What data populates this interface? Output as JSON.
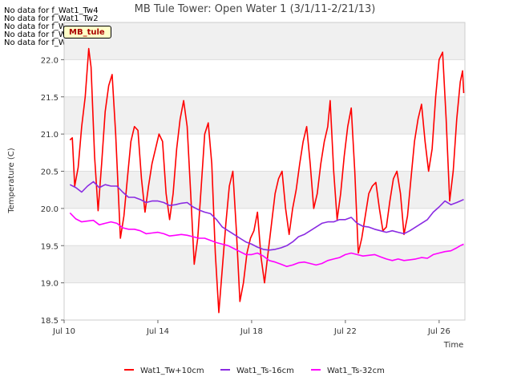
{
  "no_data_notes": [
    "No data for f_Wat1_Tw4",
    "No data for f_Wat1_Tw2",
    "No data for f_Wat1_Ts2",
    "No data for f_Wat1_Ts4",
    "No data for f_Wat1_Ts8"
  ],
  "tag_label": "MB_tule",
  "chart_data": {
    "type": "line",
    "title": "MB Tule Tower: Open Water 1 (3/1/11-2/21/13)",
    "xlabel": "Time",
    "ylabel": "Temperature (C)",
    "xlim": [
      0,
      17.1
    ],
    "ylim": [
      18.5,
      22.5
    ],
    "x_ticks": [
      {
        "value": 0,
        "label": "Jul 10"
      },
      {
        "value": 4,
        "label": "Jul 14"
      },
      {
        "value": 8,
        "label": "Jul 18"
      },
      {
        "value": 12,
        "label": "Jul 22"
      },
      {
        "value": 16,
        "label": "Jul 26"
      }
    ],
    "y_ticks": [
      18.5,
      19.0,
      19.5,
      20.0,
      20.5,
      21.0,
      21.5,
      22.0
    ],
    "grid": "horizontal-bands",
    "legend_position": "bottom",
    "series": [
      {
        "name": "Wat1_Tw+10cm",
        "color": "#ff0000",
        "points": [
          [
            0.25,
            20.92
          ],
          [
            0.35,
            20.95
          ],
          [
            0.45,
            20.3
          ],
          [
            0.6,
            20.55
          ],
          [
            0.75,
            21.1
          ],
          [
            0.9,
            21.5
          ],
          [
            1.05,
            22.15
          ],
          [
            1.15,
            21.9
          ],
          [
            1.3,
            20.7
          ],
          [
            1.45,
            19.97
          ],
          [
            1.6,
            20.6
          ],
          [
            1.75,
            21.3
          ],
          [
            1.9,
            21.65
          ],
          [
            2.05,
            21.8
          ],
          [
            2.2,
            21.0
          ],
          [
            2.4,
            19.6
          ],
          [
            2.55,
            19.9
          ],
          [
            2.7,
            20.4
          ],
          [
            2.85,
            20.9
          ],
          [
            3.0,
            21.1
          ],
          [
            3.15,
            21.05
          ],
          [
            3.3,
            20.4
          ],
          [
            3.45,
            19.95
          ],
          [
            3.6,
            20.3
          ],
          [
            3.75,
            20.6
          ],
          [
            3.9,
            20.8
          ],
          [
            4.05,
            21.0
          ],
          [
            4.2,
            20.9
          ],
          [
            4.35,
            20.2
          ],
          [
            4.5,
            19.85
          ],
          [
            4.65,
            20.2
          ],
          [
            4.8,
            20.8
          ],
          [
            4.95,
            21.2
          ],
          [
            5.1,
            21.45
          ],
          [
            5.25,
            21.1
          ],
          [
            5.4,
            20.2
          ],
          [
            5.55,
            19.25
          ],
          [
            5.7,
            19.6
          ],
          [
            5.85,
            20.3
          ],
          [
            6.0,
            21.0
          ],
          [
            6.15,
            21.15
          ],
          [
            6.3,
            20.6
          ],
          [
            6.45,
            19.4
          ],
          [
            6.6,
            18.6
          ],
          [
            6.75,
            19.2
          ],
          [
            6.9,
            19.8
          ],
          [
            7.05,
            20.3
          ],
          [
            7.2,
            20.5
          ],
          [
            7.35,
            19.7
          ],
          [
            7.5,
            18.75
          ],
          [
            7.65,
            19.0
          ],
          [
            7.8,
            19.4
          ],
          [
            7.95,
            19.6
          ],
          [
            8.1,
            19.7
          ],
          [
            8.25,
            19.95
          ],
          [
            8.4,
            19.35
          ],
          [
            8.55,
            19.0
          ],
          [
            8.7,
            19.4
          ],
          [
            8.85,
            19.8
          ],
          [
            9.0,
            20.2
          ],
          [
            9.15,
            20.4
          ],
          [
            9.3,
            20.5
          ],
          [
            9.45,
            20.0
          ],
          [
            9.6,
            19.65
          ],
          [
            9.75,
            20.0
          ],
          [
            9.9,
            20.25
          ],
          [
            10.05,
            20.6
          ],
          [
            10.2,
            20.9
          ],
          [
            10.35,
            21.1
          ],
          [
            10.5,
            20.6
          ],
          [
            10.65,
            20.0
          ],
          [
            10.8,
            20.2
          ],
          [
            10.95,
            20.6
          ],
          [
            11.1,
            20.9
          ],
          [
            11.25,
            21.1
          ],
          [
            11.35,
            21.45
          ],
          [
            11.5,
            20.5
          ],
          [
            11.65,
            19.85
          ],
          [
            11.8,
            20.2
          ],
          [
            11.95,
            20.7
          ],
          [
            12.1,
            21.1
          ],
          [
            12.25,
            21.35
          ],
          [
            12.4,
            20.5
          ],
          [
            12.55,
            19.4
          ],
          [
            12.7,
            19.6
          ],
          [
            12.85,
            19.9
          ],
          [
            13.0,
            20.2
          ],
          [
            13.15,
            20.3
          ],
          [
            13.3,
            20.35
          ],
          [
            13.45,
            20.0
          ],
          [
            13.6,
            19.7
          ],
          [
            13.75,
            19.75
          ],
          [
            13.9,
            20.1
          ],
          [
            14.05,
            20.4
          ],
          [
            14.2,
            20.5
          ],
          [
            14.35,
            20.2
          ],
          [
            14.5,
            19.65
          ],
          [
            14.65,
            19.9
          ],
          [
            14.8,
            20.4
          ],
          [
            14.95,
            20.9
          ],
          [
            15.1,
            21.2
          ],
          [
            15.25,
            21.4
          ],
          [
            15.4,
            20.9
          ],
          [
            15.55,
            20.5
          ],
          [
            15.7,
            20.8
          ],
          [
            15.85,
            21.5
          ],
          [
            16.0,
            22.0
          ],
          [
            16.15,
            22.1
          ],
          [
            16.3,
            21.2
          ],
          [
            16.45,
            20.1
          ],
          [
            16.6,
            20.5
          ],
          [
            16.75,
            21.2
          ],
          [
            16.9,
            21.7
          ],
          [
            17.0,
            21.85
          ],
          [
            17.05,
            21.55
          ]
        ]
      },
      {
        "name": "Wat1_Ts-16cm",
        "color": "#8a2be2",
        "points": [
          [
            0.25,
            20.32
          ],
          [
            0.5,
            20.28
          ],
          [
            0.75,
            20.22
          ],
          [
            1.0,
            20.3
          ],
          [
            1.25,
            20.36
          ],
          [
            1.5,
            20.28
          ],
          [
            1.75,
            20.32
          ],
          [
            2.0,
            20.3
          ],
          [
            2.25,
            20.3
          ],
          [
            2.5,
            20.22
          ],
          [
            2.75,
            20.15
          ],
          [
            3.0,
            20.15
          ],
          [
            3.25,
            20.12
          ],
          [
            3.5,
            20.08
          ],
          [
            3.75,
            20.1
          ],
          [
            4.0,
            20.1
          ],
          [
            4.25,
            20.08
          ],
          [
            4.5,
            20.04
          ],
          [
            4.75,
            20.05
          ],
          [
            5.0,
            20.07
          ],
          [
            5.25,
            20.08
          ],
          [
            5.5,
            20.02
          ],
          [
            5.75,
            19.98
          ],
          [
            6.0,
            19.95
          ],
          [
            6.25,
            19.93
          ],
          [
            6.5,
            19.85
          ],
          [
            6.75,
            19.75
          ],
          [
            7.0,
            19.7
          ],
          [
            7.25,
            19.65
          ],
          [
            7.5,
            19.6
          ],
          [
            7.75,
            19.55
          ],
          [
            8.0,
            19.52
          ],
          [
            8.25,
            19.48
          ],
          [
            8.5,
            19.45
          ],
          [
            8.75,
            19.44
          ],
          [
            9.0,
            19.45
          ],
          [
            9.25,
            19.47
          ],
          [
            9.5,
            19.5
          ],
          [
            9.75,
            19.55
          ],
          [
            10.0,
            19.62
          ],
          [
            10.25,
            19.65
          ],
          [
            10.5,
            19.7
          ],
          [
            10.75,
            19.75
          ],
          [
            11.0,
            19.8
          ],
          [
            11.25,
            19.82
          ],
          [
            11.5,
            19.82
          ],
          [
            11.75,
            19.85
          ],
          [
            12.0,
            19.85
          ],
          [
            12.25,
            19.88
          ],
          [
            12.5,
            19.8
          ],
          [
            12.75,
            19.76
          ],
          [
            13.0,
            19.75
          ],
          [
            13.25,
            19.72
          ],
          [
            13.5,
            19.7
          ],
          [
            13.75,
            19.68
          ],
          [
            14.0,
            19.7
          ],
          [
            14.25,
            19.68
          ],
          [
            14.5,
            19.66
          ],
          [
            14.75,
            19.7
          ],
          [
            15.0,
            19.75
          ],
          [
            15.25,
            19.8
          ],
          [
            15.5,
            19.85
          ],
          [
            15.75,
            19.95
          ],
          [
            16.0,
            20.02
          ],
          [
            16.25,
            20.1
          ],
          [
            16.5,
            20.05
          ],
          [
            16.75,
            20.08
          ],
          [
            16.9,
            20.1
          ],
          [
            17.05,
            20.12
          ]
        ]
      },
      {
        "name": "Wat1_Ts-32cm",
        "color": "#ff00ff",
        "points": [
          [
            0.25,
            19.94
          ],
          [
            0.5,
            19.86
          ],
          [
            0.75,
            19.82
          ],
          [
            1.0,
            19.83
          ],
          [
            1.25,
            19.84
          ],
          [
            1.5,
            19.78
          ],
          [
            1.75,
            19.8
          ],
          [
            2.0,
            19.82
          ],
          [
            2.25,
            19.8
          ],
          [
            2.5,
            19.74
          ],
          [
            2.75,
            19.72
          ],
          [
            3.0,
            19.72
          ],
          [
            3.25,
            19.7
          ],
          [
            3.5,
            19.66
          ],
          [
            3.75,
            19.67
          ],
          [
            4.0,
            19.68
          ],
          [
            4.25,
            19.66
          ],
          [
            4.5,
            19.63
          ],
          [
            4.75,
            19.64
          ],
          [
            5.0,
            19.65
          ],
          [
            5.25,
            19.64
          ],
          [
            5.5,
            19.62
          ],
          [
            5.75,
            19.6
          ],
          [
            6.0,
            19.6
          ],
          [
            6.25,
            19.57
          ],
          [
            6.5,
            19.54
          ],
          [
            6.75,
            19.52
          ],
          [
            7.0,
            19.5
          ],
          [
            7.25,
            19.46
          ],
          [
            7.5,
            19.42
          ],
          [
            7.75,
            19.38
          ],
          [
            8.0,
            19.38
          ],
          [
            8.25,
            19.4
          ],
          [
            8.5,
            19.36
          ],
          [
            8.75,
            19.3
          ],
          [
            9.0,
            19.28
          ],
          [
            9.25,
            19.25
          ],
          [
            9.5,
            19.22
          ],
          [
            9.75,
            19.24
          ],
          [
            10.0,
            19.27
          ],
          [
            10.25,
            19.28
          ],
          [
            10.5,
            19.26
          ],
          [
            10.75,
            19.24
          ],
          [
            11.0,
            19.26
          ],
          [
            11.25,
            19.3
          ],
          [
            11.5,
            19.32
          ],
          [
            11.75,
            19.34
          ],
          [
            12.0,
            19.38
          ],
          [
            12.25,
            19.4
          ],
          [
            12.5,
            19.38
          ],
          [
            12.75,
            19.36
          ],
          [
            13.0,
            19.37
          ],
          [
            13.25,
            19.38
          ],
          [
            13.5,
            19.35
          ],
          [
            13.75,
            19.32
          ],
          [
            14.0,
            19.3
          ],
          [
            14.25,
            19.32
          ],
          [
            14.5,
            19.3
          ],
          [
            14.75,
            19.31
          ],
          [
            15.0,
            19.32
          ],
          [
            15.25,
            19.34
          ],
          [
            15.5,
            19.33
          ],
          [
            15.75,
            19.38
          ],
          [
            16.0,
            19.4
          ],
          [
            16.25,
            19.42
          ],
          [
            16.5,
            19.43
          ],
          [
            16.75,
            19.47
          ],
          [
            16.9,
            19.5
          ],
          [
            17.05,
            19.52
          ]
        ]
      }
    ]
  }
}
